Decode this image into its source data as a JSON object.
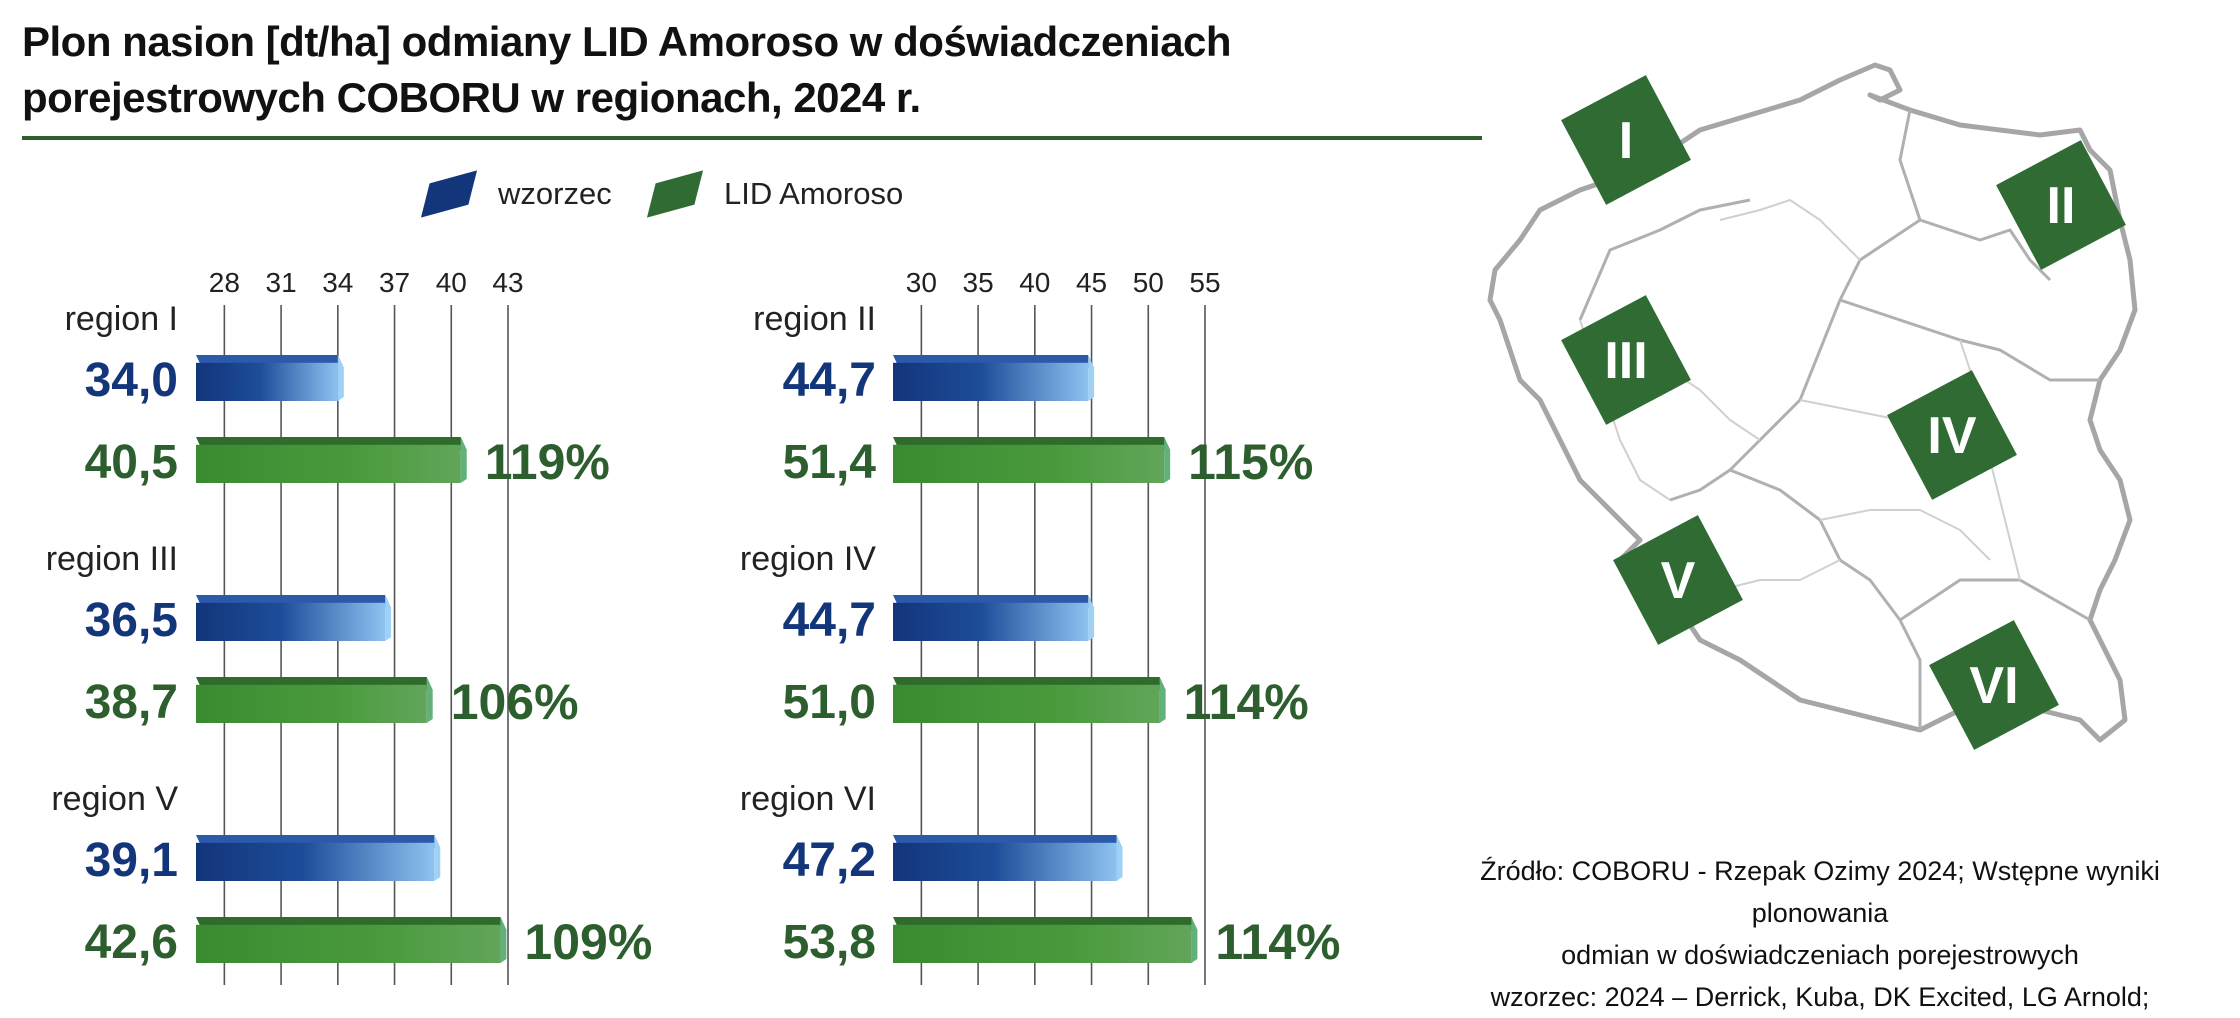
{
  "title": "Plon nasion [dt/ha] odmiany LID Amoroso w doświadczeniach porejestrowych COBORU w regionach, 2024 r.",
  "colors": {
    "wzorzec": "#13357a",
    "amoroso": "#2f7a2f",
    "accent_green": "#2c5e2e",
    "map_region": "#2f6b33"
  },
  "legend": [
    {
      "label": "wzorzec",
      "color": "#13357a"
    },
    {
      "label": "LID Amoroso",
      "color": "#2f6b33"
    }
  ],
  "chart_data": [
    {
      "type": "bar",
      "orientation": "horizontal",
      "ticks": [
        28,
        31,
        34,
        37,
        40,
        43
      ],
      "xlim": [
        26.5,
        43
      ],
      "groups": [
        {
          "label": "region I",
          "wzorzec": 34.0,
          "wzorzec_label": "34,0",
          "amoroso": 40.5,
          "amoroso_label": "40,5",
          "pct": "119%"
        },
        {
          "label": "region III",
          "wzorzec": 36.5,
          "wzorzec_label": "36,5",
          "amoroso": 38.7,
          "amoroso_label": "38,7",
          "pct": "106%"
        },
        {
          "label": "region V",
          "wzorzec": 39.1,
          "wzorzec_label": "39,1",
          "amoroso": 42.6,
          "amoroso_label": "42,6",
          "pct": "109%"
        }
      ]
    },
    {
      "type": "bar",
      "orientation": "horizontal",
      "ticks": [
        30,
        35,
        40,
        45,
        50,
        55
      ],
      "xlim": [
        27.5,
        55
      ],
      "groups": [
        {
          "label": "region II",
          "wzorzec": 44.7,
          "wzorzec_label": "44,7",
          "amoroso": 51.4,
          "amoroso_label": "51,4",
          "pct": "115%"
        },
        {
          "label": "region IV",
          "wzorzec": 44.7,
          "wzorzec_label": "44,7",
          "amoroso": 51.0,
          "amoroso_label": "51,0",
          "pct": "114%"
        },
        {
          "label": "region VI",
          "wzorzec": 47.2,
          "wzorzec_label": "47,2",
          "amoroso": 53.8,
          "amoroso_label": "53,8",
          "pct": "114%"
        }
      ]
    }
  ],
  "map": {
    "regions": [
      {
        "label": "I"
      },
      {
        "label": "II"
      },
      {
        "label": "III"
      },
      {
        "label": "IV"
      },
      {
        "label": "V"
      },
      {
        "label": "VI"
      }
    ]
  },
  "source": {
    "line1": "Źródło: COBORU - Rzepak Ozimy 2024; Wstępne wyniki plonowania",
    "line2": "odmian w doświadczeniach porejestrowych",
    "line3": "wzorzec: 2024 – Derrick, Kuba, DK Excited, LG Arnold;"
  }
}
